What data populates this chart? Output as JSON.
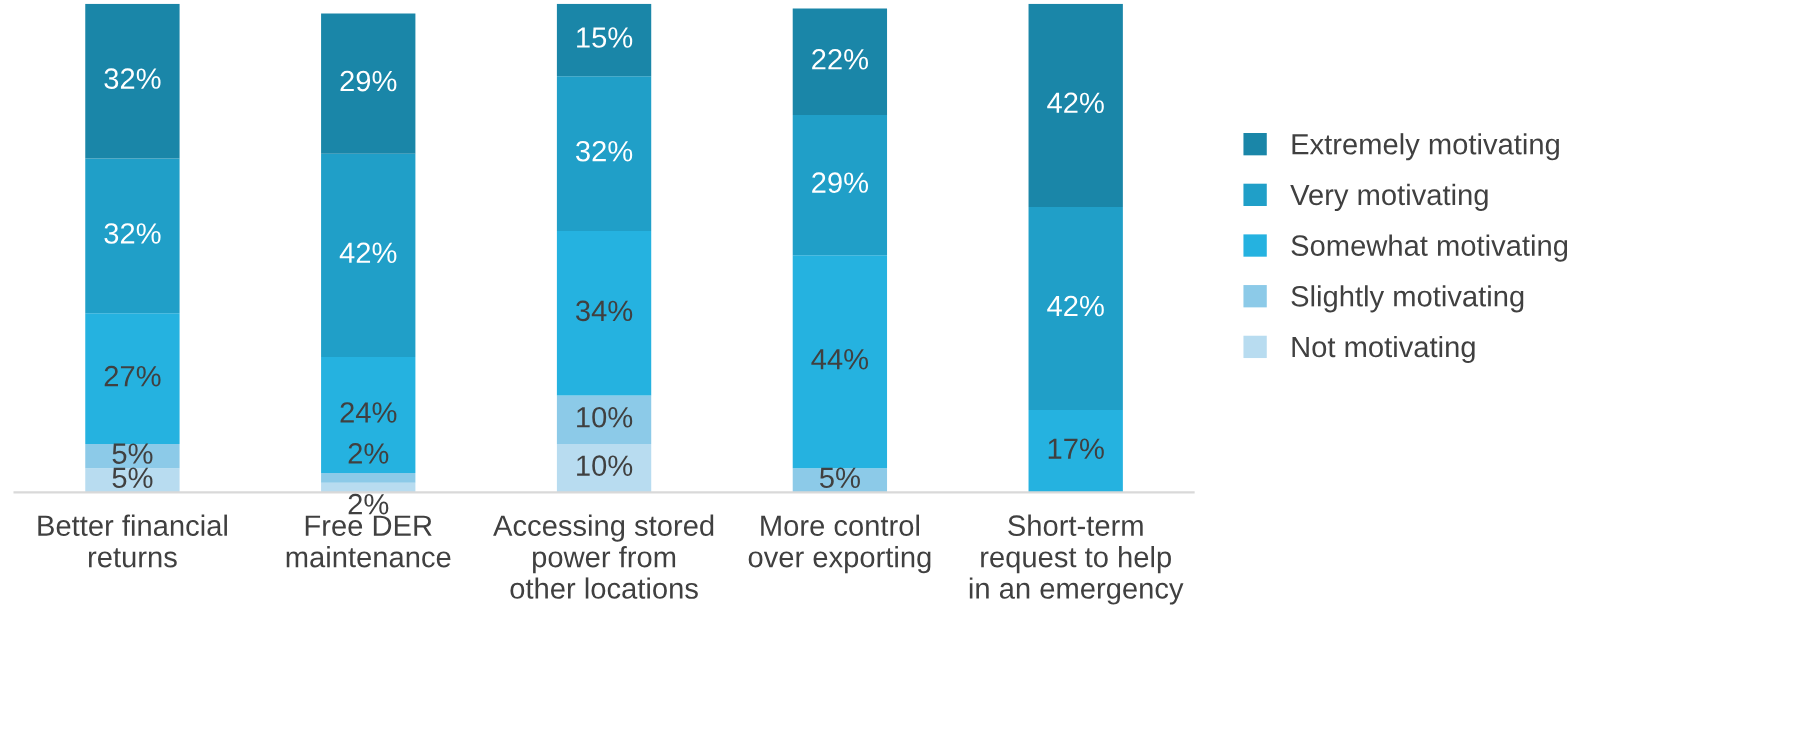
{
  "chart_data": {
    "type": "bar",
    "stacked": true,
    "legend": "right",
    "tick_labels": "x",
    "ylim": [
      0,
      101
    ],
    "categories": [
      "Better financial\nreturns",
      "Free DER\nmaintenance",
      "Accessing stored\npower from\nother locations",
      "More control\nover exporting",
      "Short-term\nrequest to help\nin an emergency"
    ],
    "series": [
      {
        "name": "Not motivating",
        "color": "#b8dcf0",
        "values": [
          5,
          2,
          10,
          null,
          null
        ],
        "value_labels": [
          "5%",
          "2%",
          "10%",
          null,
          null
        ]
      },
      {
        "name": "Slightly motivating",
        "color": "#8ccae8",
        "values": [
          5,
          2,
          10,
          5,
          null
        ],
        "value_labels": [
          "5%",
          "2%",
          "10%",
          "5%",
          null
        ]
      },
      {
        "name": "Somewhat motivating",
        "color": "#25b2e0",
        "values": [
          27,
          24,
          34,
          44,
          17
        ],
        "value_labels": [
          "27%",
          "24%",
          "34%",
          "44%",
          "17%"
        ]
      },
      {
        "name": "Very motivating",
        "color": "#209fc8",
        "values": [
          32,
          42,
          32,
          29,
          42
        ],
        "value_labels": [
          "32%",
          "42%",
          "32%",
          "29%",
          "42%"
        ]
      },
      {
        "name": "Extremely motivating",
        "color": "#1a86a8",
        "values": [
          32,
          29,
          15,
          22,
          42
        ],
        "value_labels": [
          "32%",
          "29%",
          "15%",
          "22%",
          "42%"
        ]
      }
    ]
  }
}
